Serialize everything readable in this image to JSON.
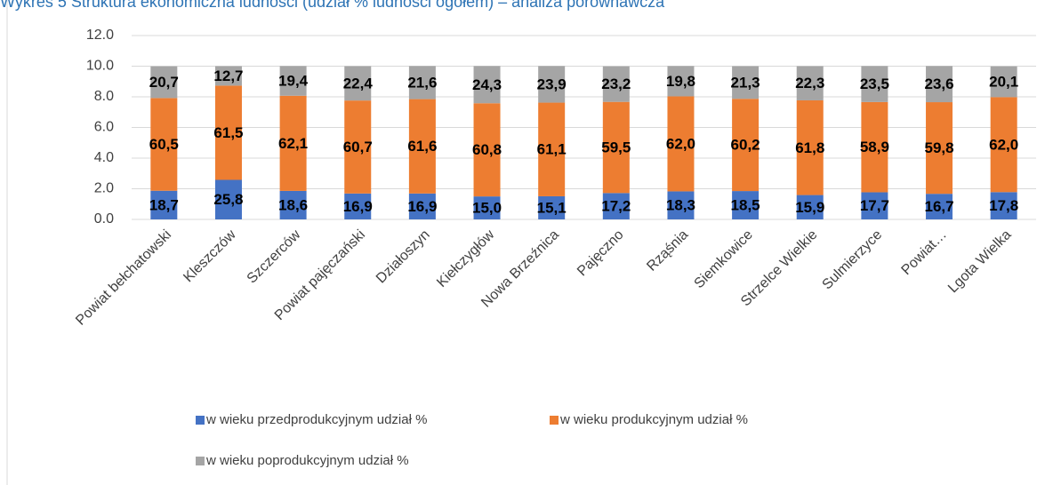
{
  "chart_data": {
    "type": "stacked_bar",
    "title": "Wykres 5 Struktura ekonomiczna ludności (udział % ludności ogółem) – analiza porównawcza",
    "categories": [
      "Powiat bełchatowski",
      "Kleszczów",
      "Szczerców",
      "Powiat pajęczański",
      "Działoszyn",
      "Kiełczygłów",
      "Nowa Brzeźnica",
      "Pajęczno",
      "Rząśnia",
      "Siemkowice",
      "Strzelce Wielkie",
      "Sulmierzyce",
      "Powiat…",
      "Lgota Wielka"
    ],
    "series": [
      {
        "name": "w wieku przedprodukcyjnym udział %",
        "color": "#4472c4",
        "values": [
          1.87,
          2.58,
          1.86,
          1.69,
          1.69,
          1.5,
          1.51,
          1.72,
          1.83,
          1.85,
          1.59,
          1.77,
          1.67,
          1.78
        ],
        "value_labels": [
          "18,7",
          "25,8",
          "18,6",
          "16,9",
          "16,9",
          "15,0",
          "15,1",
          "17,2",
          "18,3",
          "18,5",
          "15,9",
          "17,7",
          "16,7",
          "17,8"
        ]
      },
      {
        "name": "w wieku produkcyjnym udział %",
        "color": "#ed7d31",
        "values": [
          6.05,
          6.15,
          6.21,
          6.07,
          6.16,
          6.08,
          6.11,
          5.95,
          6.2,
          6.02,
          6.18,
          5.89,
          5.98,
          6.2
        ],
        "value_labels": [
          "60,5",
          "61,5",
          "62,1",
          "60,7",
          "61,6",
          "60,8",
          "61,1",
          "59,5",
          "62,0",
          "60,2",
          "61,8",
          "58,9",
          "59,8",
          "62,0"
        ]
      },
      {
        "name": "w wieku poprodukcyjnym udział %",
        "color": "#a5a5a5",
        "values": [
          2.07,
          1.27,
          1.94,
          2.24,
          2.16,
          2.43,
          2.39,
          2.32,
          1.98,
          2.13,
          2.23,
          2.35,
          2.36,
          2.01
        ],
        "value_labels": [
          "20,7",
          "12,7",
          "19,4",
          "22,4",
          "21,6",
          "24,3",
          "23,9",
          "23,2",
          "19,8",
          "21,3",
          "22,3",
          "23,5",
          "23,6",
          "20,1"
        ]
      }
    ],
    "ylim": [
      0,
      12
    ],
    "yticks": [
      {
        "value": 0,
        "label": "0.0"
      },
      {
        "value": 2,
        "label": "2.0"
      },
      {
        "value": 4,
        "label": "4.0"
      },
      {
        "value": 6,
        "label": "6.0"
      },
      {
        "value": 8,
        "label": "8.0"
      },
      {
        "value": 10,
        "label": "10.0"
      },
      {
        "value": 12,
        "label": "12.0"
      }
    ],
    "grid": true
  }
}
